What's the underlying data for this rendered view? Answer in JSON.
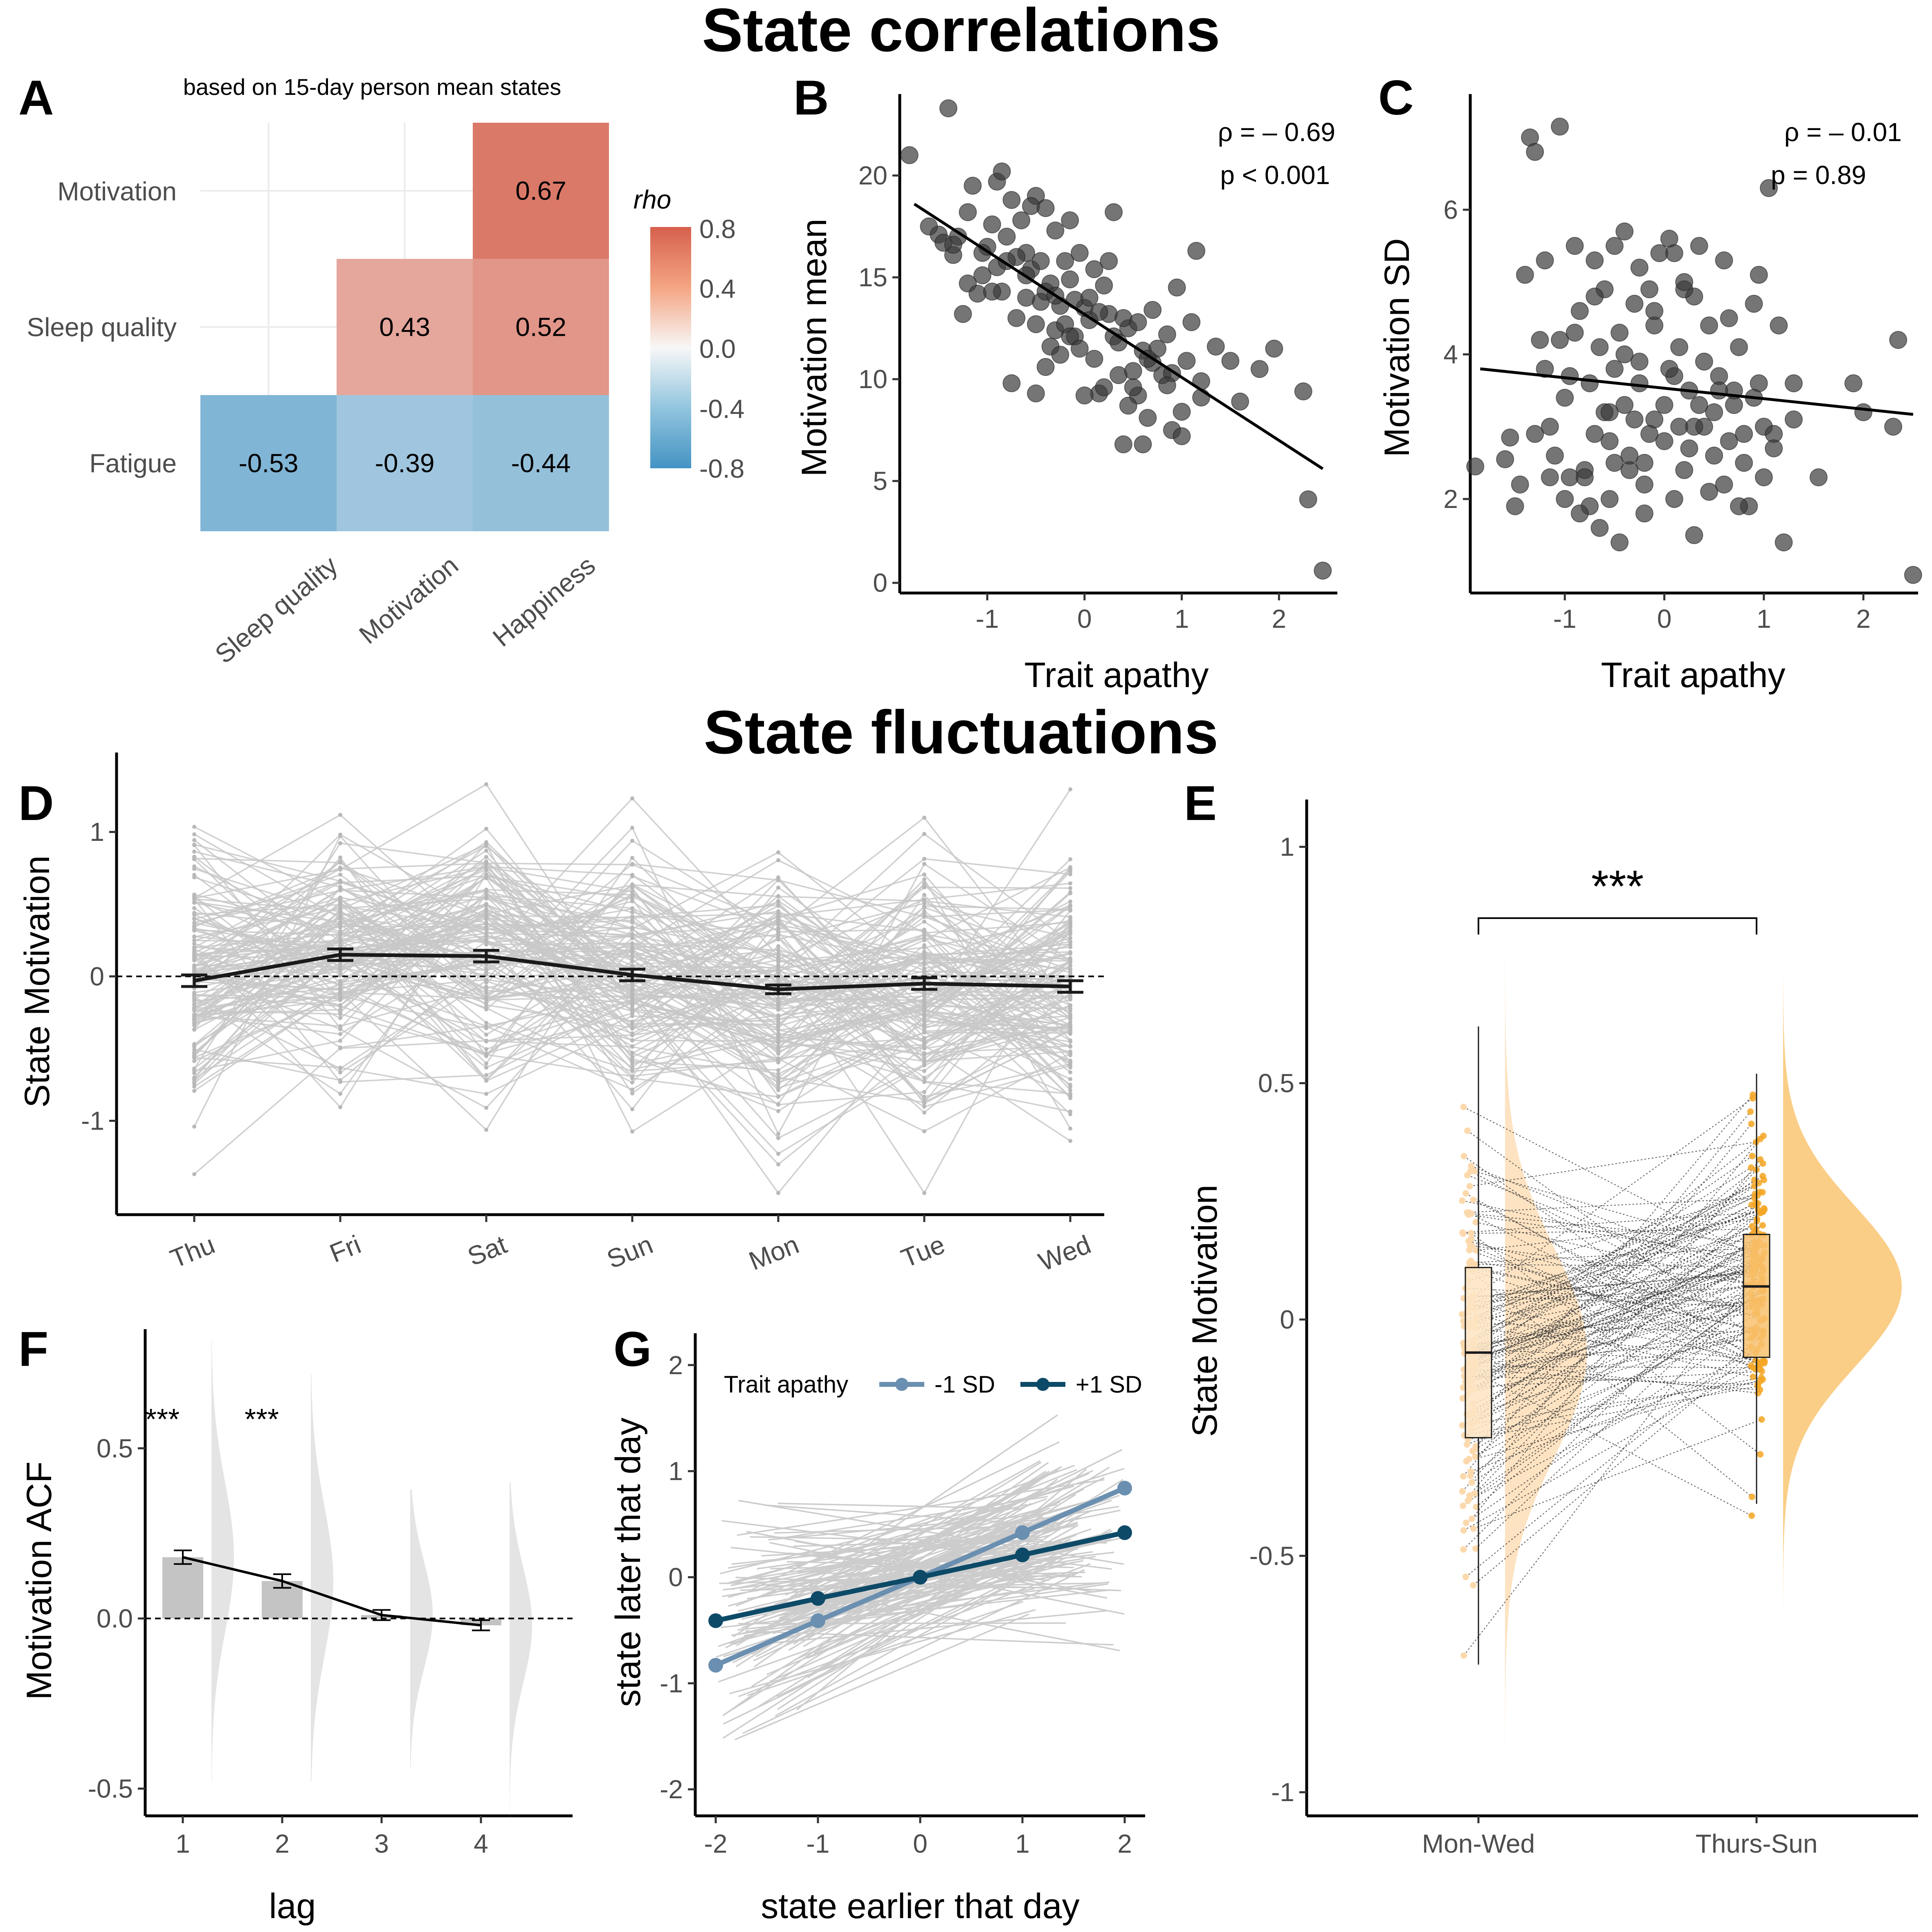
{
  "titles": {
    "correlations": "State correlations",
    "fluctuations": "State fluctuations"
  },
  "colors": {
    "heat_pos": "#d6604d",
    "heat_neg": "#4393c3",
    "points": "#3a3a3a",
    "spaghetti": "#c8c8c8",
    "rain": "#f5a623",
    "rain_light": "#fcd9ad",
    "g_minus": "#6a8fb0",
    "g_plus": "#0d4a68"
  },
  "chart_data": [
    {
      "panel": "A",
      "type": "heatmap",
      "subtitle": "based on 15-day person mean states",
      "legend_title": "rho",
      "legend_ticks": [
        "0.8",
        "0.4",
        "0.0",
        "-0.4",
        "-0.8"
      ],
      "rows": [
        "Motivation",
        "Sleep quality",
        "Fatigue"
      ],
      "cols": [
        "Sleep quality",
        "Motivation",
        "Happiness"
      ],
      "cells": [
        {
          "row": "Motivation",
          "col": "Happiness",
          "value": 0.67,
          "label": "0.67"
        },
        {
          "row": "Sleep quality",
          "col": "Motivation",
          "value": 0.43,
          "label": "0.43"
        },
        {
          "row": "Sleep quality",
          "col": "Happiness",
          "value": 0.52,
          "label": "0.52"
        },
        {
          "row": "Fatigue",
          "col": "Sleep quality",
          "value": -0.53,
          "label": "-0.53"
        },
        {
          "row": "Fatigue",
          "col": "Motivation",
          "value": -0.39,
          "label": "-0.39"
        },
        {
          "row": "Fatigue",
          "col": "Happiness",
          "value": -0.44,
          "label": "-0.44"
        }
      ]
    },
    {
      "panel": "B",
      "type": "scatter",
      "xlabel": "Trait apathy",
      "ylabel": "Motivation mean",
      "xlim": [
        -1.9,
        2.6
      ],
      "ylim": [
        -0.5,
        24
      ],
      "xticks": [
        -1,
        0,
        1,
        2
      ],
      "yticks": [
        0,
        5,
        10,
        15,
        20
      ],
      "annotation": [
        "ρ = – 0.69",
        "p < 0.001"
      ],
      "fit": {
        "x": [
          -1.75,
          2.45
        ],
        "y": [
          18.6,
          5.6
        ]
      },
      "points": [
        [
          -1.8,
          21.0
        ],
        [
          -1.4,
          23.3
        ],
        [
          -1.35,
          16.1
        ],
        [
          -1.3,
          17.0
        ],
        [
          -1.5,
          17.1
        ],
        [
          -1.45,
          16.7
        ],
        [
          -1.2,
          14.7
        ],
        [
          -1.25,
          13.2
        ],
        [
          -1.1,
          14.2
        ],
        [
          -1.05,
          15.1
        ],
        [
          -1.0,
          16.5
        ],
        [
          -0.95,
          17.6
        ],
        [
          -0.9,
          19.7
        ],
        [
          -0.85,
          14.3
        ],
        [
          -0.8,
          17.0
        ],
        [
          -0.75,
          18.8
        ],
        [
          -0.7,
          13.0
        ],
        [
          -0.6,
          16.2
        ],
        [
          -0.55,
          15.4
        ],
        [
          -0.5,
          19.0
        ],
        [
          -0.45,
          13.8
        ],
        [
          -0.4,
          14.3
        ],
        [
          -0.35,
          11.6
        ],
        [
          -0.3,
          12.4
        ],
        [
          -0.25,
          13.6
        ],
        [
          -0.2,
          15.8
        ],
        [
          -0.15,
          14.9
        ],
        [
          -0.1,
          12.1
        ],
        [
          -0.05,
          16.2
        ],
        [
          0.0,
          13.5
        ],
        [
          0.05,
          12.9
        ],
        [
          0.1,
          11.0
        ],
        [
          0.15,
          9.3
        ],
        [
          0.2,
          14.6
        ],
        [
          0.25,
          13.2
        ],
        [
          0.3,
          18.2
        ],
        [
          0.35,
          10.2
        ],
        [
          0.4,
          6.8
        ],
        [
          0.45,
          12.5
        ],
        [
          0.5,
          10.4
        ],
        [
          0.55,
          9.2
        ],
        [
          0.6,
          11.4
        ],
        [
          0.65,
          8.1
        ],
        [
          0.7,
          13.4
        ],
        [
          0.75,
          11.5
        ],
        [
          0.8,
          10.2
        ],
        [
          0.85,
          12.2
        ],
        [
          0.9,
          7.5
        ],
        [
          0.95,
          14.5
        ],
        [
          1.0,
          7.2
        ],
        [
          1.05,
          10.9
        ],
        [
          1.1,
          12.8
        ],
        [
          1.15,
          16.3
        ],
        [
          1.2,
          9.1
        ],
        [
          1.35,
          11.6
        ],
        [
          1.5,
          10.9
        ],
        [
          1.6,
          8.9
        ],
        [
          1.8,
          10.5
        ],
        [
          1.95,
          11.5
        ],
        [
          2.25,
          9.4
        ],
        [
          2.3,
          4.1
        ],
        [
          2.45,
          0.6
        ],
        [
          -1.6,
          17.5
        ],
        [
          -1.15,
          19.5
        ],
        [
          -0.85,
          20.2
        ],
        [
          -0.65,
          17.8
        ],
        [
          -0.55,
          18.5
        ],
        [
          -0.4,
          18.4
        ],
        [
          -0.3,
          17.3
        ],
        [
          -0.15,
          17.8
        ],
        [
          -0.6,
          15.1
        ],
        [
          -0.35,
          14.7
        ],
        [
          -0.2,
          12.7
        ],
        [
          -0.1,
          13.9
        ],
        [
          0.1,
          15.4
        ],
        [
          0.3,
          12.1
        ],
        [
          0.4,
          13.0
        ],
        [
          0.55,
          12.8
        ],
        [
          0.7,
          10.8
        ],
        [
          0.9,
          10.3
        ],
        [
          -0.75,
          9.8
        ],
        [
          -0.5,
          9.3
        ],
        [
          -0.4,
          10.6
        ],
        [
          -0.25,
          11.2
        ],
        [
          0.0,
          9.2
        ],
        [
          0.2,
          9.6
        ],
        [
          0.45,
          8.7
        ],
        [
          0.6,
          6.8
        ],
        [
          0.85,
          9.7
        ],
        [
          1.2,
          9.9
        ],
        [
          -1.35,
          16.6
        ],
        [
          -1.05,
          16.2
        ],
        [
          -0.95,
          14.3
        ],
        [
          -0.7,
          16.0
        ],
        [
          -0.45,
          15.8
        ],
        [
          -0.3,
          14.1
        ],
        [
          0.05,
          14.0
        ],
        [
          0.25,
          15.8
        ],
        [
          -0.6,
          14.0
        ],
        [
          0.35,
          11.8
        ],
        [
          -0.9,
          15.5
        ],
        [
          -0.15,
          12.1
        ],
        [
          0.65,
          11.0
        ],
        [
          -0.5,
          12.7
        ],
        [
          0.15,
          13.3
        ],
        [
          -0.05,
          11.5
        ],
        [
          -1.2,
          18.2
        ],
        [
          -0.8,
          15.8
        ],
        [
          0.5,
          9.6
        ],
        [
          1.0,
          8.4
        ]
      ]
    },
    {
      "panel": "C",
      "type": "scatter",
      "xlabel": "Trait apathy",
      "ylabel": "Motivation SD",
      "xlim": [
        -1.95,
        2.55
      ],
      "ylim": [
        0.7,
        7.6
      ],
      "xticks": [
        -1,
        0,
        1,
        2
      ],
      "yticks": [
        2,
        4,
        6
      ],
      "annotation": [
        "ρ = – 0.01",
        "p = 0.89"
      ],
      "fit": {
        "x": [
          -1.85,
          2.5
        ],
        "y": [
          3.8,
          3.17
        ]
      },
      "points": [
        [
          -1.9,
          2.45
        ],
        [
          -1.6,
          2.55
        ],
        [
          -1.55,
          2.85
        ],
        [
          -1.5,
          1.9
        ],
        [
          -1.4,
          5.1
        ],
        [
          -1.35,
          7.0
        ],
        [
          -1.3,
          6.8
        ],
        [
          -1.25,
          4.2
        ],
        [
          -1.2,
          3.8
        ],
        [
          -1.15,
          2.3
        ],
        [
          -1.05,
          7.15
        ],
        [
          -1.0,
          2.0
        ],
        [
          -0.95,
          3.7
        ],
        [
          -0.9,
          5.5
        ],
        [
          -0.85,
          4.6
        ],
        [
          -0.8,
          2.4
        ],
        [
          -0.75,
          1.9
        ],
        [
          -0.7,
          5.3
        ],
        [
          -0.65,
          4.1
        ],
        [
          -0.6,
          3.2
        ],
        [
          -0.55,
          2.8
        ],
        [
          -0.5,
          5.5
        ],
        [
          -0.45,
          4.3
        ],
        [
          -0.4,
          3.3
        ],
        [
          -0.35,
          2.4
        ],
        [
          -0.3,
          4.7
        ],
        [
          -0.25,
          3.6
        ],
        [
          -0.2,
          2.5
        ],
        [
          -0.15,
          4.9
        ],
        [
          -0.1,
          3.1
        ],
        [
          -0.05,
          5.4
        ],
        [
          0.0,
          2.8
        ],
        [
          0.05,
          5.6
        ],
        [
          0.1,
          3.7
        ],
        [
          0.15,
          4.1
        ],
        [
          0.2,
          2.4
        ],
        [
          0.25,
          3.5
        ],
        [
          0.3,
          4.8
        ],
        [
          0.35,
          5.5
        ],
        [
          0.4,
          3.0
        ],
        [
          0.45,
          4.4
        ],
        [
          0.5,
          3.2
        ],
        [
          0.55,
          3.7
        ],
        [
          0.6,
          5.3
        ],
        [
          0.65,
          2.8
        ],
        [
          0.7,
          3.5
        ],
        [
          0.75,
          4.1
        ],
        [
          0.8,
          2.5
        ],
        [
          0.85,
          1.9
        ],
        [
          0.9,
          4.7
        ],
        [
          0.95,
          5.1
        ],
        [
          1.0,
          3.0
        ],
        [
          1.05,
          6.3
        ],
        [
          1.1,
          2.9
        ],
        [
          1.15,
          4.4
        ],
        [
          1.2,
          1.4
        ],
        [
          1.3,
          3.1
        ],
        [
          1.55,
          2.3
        ],
        [
          1.9,
          3.6
        ],
        [
          2.0,
          3.2
        ],
        [
          2.3,
          3.0
        ],
        [
          2.35,
          4.2
        ],
        [
          2.5,
          0.95
        ],
        [
          -1.3,
          2.9
        ],
        [
          -1.15,
          3.0
        ],
        [
          -0.95,
          2.3
        ],
        [
          -0.85,
          1.8
        ],
        [
          -0.7,
          2.9
        ],
        [
          -0.55,
          2.0
        ],
        [
          -0.45,
          1.4
        ],
        [
          -0.35,
          2.6
        ],
        [
          -0.2,
          1.8
        ],
        [
          0.0,
          3.3
        ],
        [
          0.15,
          3.0
        ],
        [
          0.3,
          1.5
        ],
        [
          0.45,
          2.1
        ],
        [
          0.6,
          2.2
        ],
        [
          0.75,
          1.9
        ],
        [
          0.95,
          3.6
        ],
        [
          1.1,
          2.7
        ],
        [
          -1.2,
          5.3
        ],
        [
          -0.9,
          4.3
        ],
        [
          -0.6,
          4.9
        ],
        [
          -0.4,
          5.7
        ],
        [
          -0.25,
          3.9
        ],
        [
          -0.1,
          4.4
        ],
        [
          0.1,
          5.4
        ],
        [
          0.2,
          4.9
        ],
        [
          0.35,
          3.3
        ],
        [
          0.55,
          3.5
        ],
        [
          -1.0,
          3.4
        ],
        [
          -0.75,
          3.6
        ],
        [
          -0.5,
          3.8
        ],
        [
          -0.3,
          3.1
        ],
        [
          -0.15,
          2.9
        ],
        [
          0.05,
          3.8
        ],
        [
          0.25,
          2.7
        ],
        [
          0.4,
          3.9
        ],
        [
          0.7,
          3.3
        ],
        [
          0.9,
          3.4
        ],
        [
          -1.45,
          2.2
        ],
        [
          -1.1,
          2.6
        ],
        [
          -0.8,
          2.3
        ],
        [
          -0.65,
          1.6
        ],
        [
          -0.5,
          2.5
        ],
        [
          -0.2,
          2.2
        ],
        [
          0.1,
          2.0
        ],
        [
          0.5,
          2.6
        ],
        [
          0.8,
          2.9
        ],
        [
          1.0,
          2.3
        ],
        [
          -0.4,
          4.0
        ],
        [
          -0.1,
          4.6
        ],
        [
          0.2,
          5.0
        ],
        [
          -0.7,
          4.8
        ],
        [
          0.65,
          4.5
        ],
        [
          -0.55,
          3.2
        ],
        [
          0.3,
          3.0
        ],
        [
          -1.05,
          4.2
        ],
        [
          1.3,
          3.6
        ],
        [
          -0.25,
          5.2
        ]
      ]
    },
    {
      "panel": "D",
      "type": "line",
      "ylabel": "State Motivation",
      "categories": [
        "Thu",
        "Fri",
        "Sat",
        "Sun",
        "Mon",
        "Tue",
        "Wed"
      ],
      "ylim": [
        -1.65,
        1.55
      ],
      "yticks": [
        "1",
        "0",
        "-1"
      ],
      "yticks_values": [
        1,
        0,
        -1
      ],
      "mean": [
        -0.03,
        0.15,
        0.14,
        0.01,
        -0.09,
        -0.05,
        -0.07
      ],
      "se": [
        0.04,
        0.04,
        0.04,
        0.04,
        0.03,
        0.04,
        0.04
      ],
      "individual_series_count": 140
    },
    {
      "panel": "E",
      "type": "scatter",
      "ylabel": "State Motivation",
      "categories": [
        "Mon-Wed",
        "Thurs-Sun"
      ],
      "ylim": [
        -1.05,
        1.1
      ],
      "yticks": [
        "1",
        "0.5",
        "0",
        "-0.5",
        "-1"
      ],
      "yticks_values": [
        1,
        0.5,
        0,
        -0.5,
        -1
      ],
      "significance": "***",
      "boxes": [
        {
          "group": "Mon-Wed",
          "min": -0.73,
          "q1": -0.25,
          "median": -0.07,
          "q3": 0.11,
          "max": 0.62
        },
        {
          "group": "Thurs-Sun",
          "min": -0.39,
          "q1": -0.08,
          "median": 0.07,
          "q3": 0.18,
          "max": 0.52
        }
      ],
      "density": [
        {
          "group": "Mon-Wed",
          "mean": -0.07,
          "sd": 0.22,
          "range": [
            -1.0,
            0.9
          ]
        },
        {
          "group": "Thurs-Sun",
          "mean": 0.07,
          "sd": 0.17,
          "range": [
            -0.9,
            0.72
          ]
        }
      ],
      "paired_count": 140
    },
    {
      "panel": "F",
      "type": "bar",
      "xlabel": "lag",
      "ylabel": "Motivation ACF",
      "categories": [
        "1",
        "2",
        "3",
        "4"
      ],
      "values": [
        0.18,
        0.11,
        0.01,
        -0.02
      ],
      "se": [
        0.02,
        0.02,
        0.015,
        0.015
      ],
      "ylim": [
        -0.58,
        0.85
      ],
      "yticks": [
        "0.5",
        "0.0",
        "-0.5"
      ],
      "yticks_values": [
        0.5,
        0.0,
        -0.5
      ],
      "significance": [
        "***",
        "***",
        "",
        ""
      ]
    },
    {
      "panel": "G",
      "type": "line",
      "xlabel": "state earlier that day",
      "ylabel": "state later that day",
      "legend_title": "Trait apathy",
      "x": [
        -2,
        -1,
        0,
        1,
        2
      ],
      "xlim": [
        -2.2,
        2.2
      ],
      "ylim": [
        -2.25,
        2.3
      ],
      "xticks": [
        "-2",
        "-1",
        "0",
        "1",
        "2"
      ],
      "xticks_values": [
        -2,
        -1,
        0,
        1,
        2
      ],
      "yticks": [
        "2",
        "1",
        "0",
        "-1",
        "-2"
      ],
      "yticks_values": [
        2,
        1,
        0,
        -1,
        -2
      ],
      "series": [
        {
          "name": "-1 SD",
          "values": [
            -0.83,
            -0.41,
            0.0,
            0.42,
            0.84
          ],
          "se": [
            0.05,
            0.03,
            0.02,
            0.03,
            0.05
          ]
        },
        {
          "name": "+1 SD",
          "values": [
            -0.41,
            -0.2,
            0.0,
            0.21,
            0.42
          ],
          "se": [
            0.05,
            0.03,
            0.02,
            0.03,
            0.05
          ]
        }
      ],
      "individual_series_count": 140
    }
  ]
}
